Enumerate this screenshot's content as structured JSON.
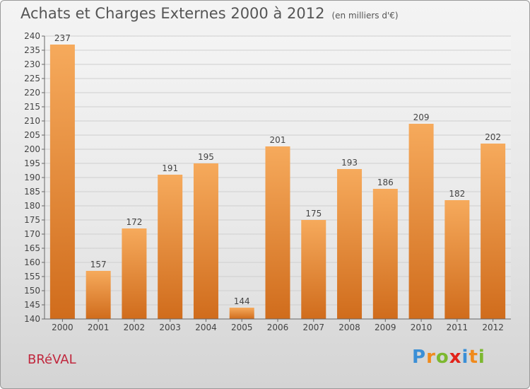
{
  "header": {
    "title": "Achats et Charges Externes 2000 à 2012",
    "unit": "(en milliers d'€)"
  },
  "footer": {
    "commune": "BRéVAL",
    "logo_letters": [
      "P",
      "r",
      "o",
      "x",
      "i",
      "t",
      "i"
    ],
    "logo_colors": [
      "#3b8fd6",
      "#f08a1c",
      "#7cb82f",
      "#e2231a",
      "#3b8fd6",
      "#f08a1c",
      "#7cb82f"
    ]
  },
  "colors": {
    "bar_light": "#f6aa5c",
    "bar_dark": "#d06c1c",
    "grid": "#cfcfcf",
    "text": "#444444"
  },
  "chart_data": {
    "type": "bar",
    "title": "Achats et Charges Externes 2000 à 2012",
    "unit": "(en milliers d'€)",
    "categories": [
      "2000",
      "2001",
      "2002",
      "2003",
      "2004",
      "2005",
      "2006",
      "2007",
      "2008",
      "2009",
      "2010",
      "2011",
      "2012"
    ],
    "values": [
      237,
      157,
      172,
      191,
      195,
      144,
      201,
      175,
      193,
      186,
      209,
      182,
      202
    ],
    "ylim": [
      140,
      240
    ],
    "ytick_step": 5,
    "yticks": [
      "140",
      "145",
      "150",
      "155",
      "160",
      "165",
      "170",
      "175",
      "180",
      "185",
      "190",
      "195",
      "200",
      "205",
      "210",
      "215",
      "220",
      "225",
      "230",
      "235",
      "240"
    ],
    "grid": true,
    "legend": "none"
  }
}
